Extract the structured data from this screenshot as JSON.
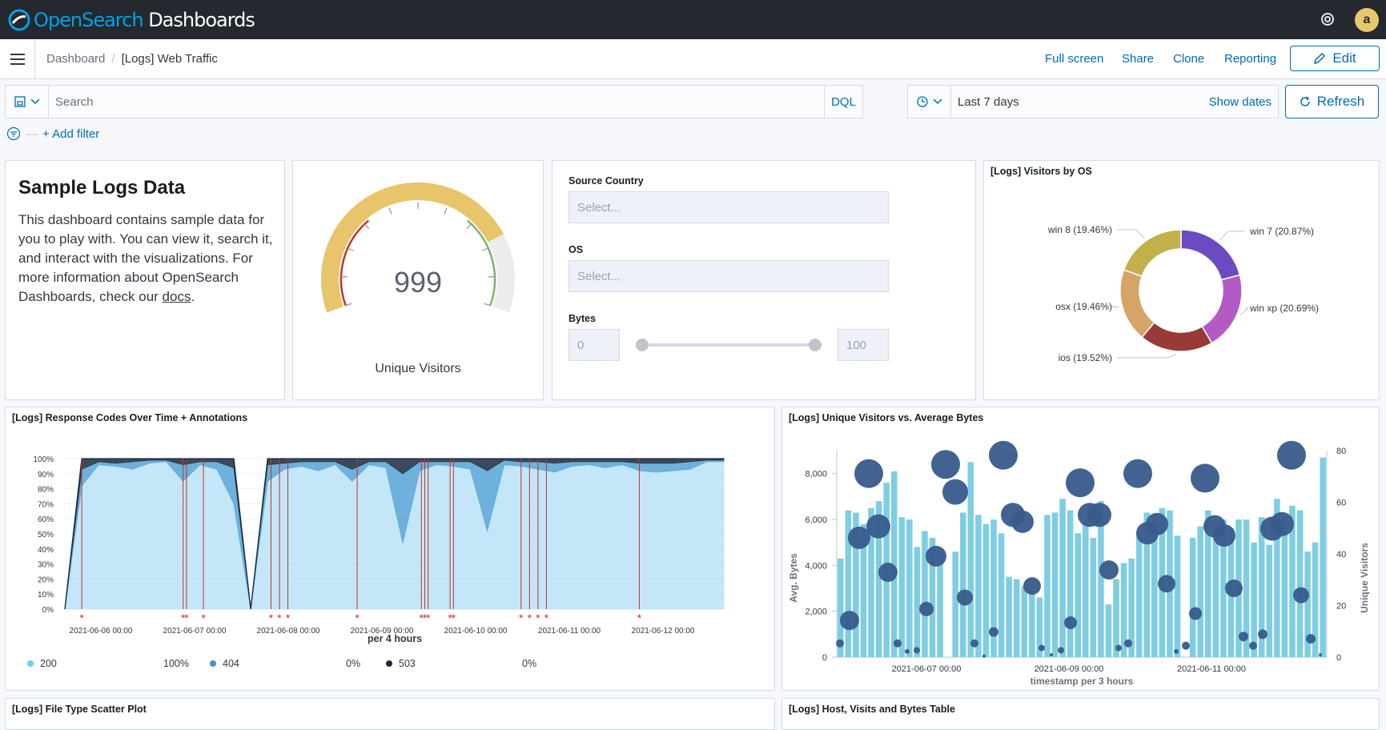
{
  "app": {
    "logo_brand": "OpenSearch",
    "logo_product": "Dashboards",
    "avatar_letter": "a"
  },
  "breadcrumb": {
    "root": "Dashboard",
    "current": "[Logs] Web Traffic"
  },
  "nav_actions": {
    "full_screen": "Full screen",
    "share": "Share",
    "clone": "Clone",
    "reporting": "Reporting",
    "edit": "Edit"
  },
  "query": {
    "placeholder": "Search",
    "language": "DQL",
    "time_range": "Last 7 days",
    "show_dates": "Show dates",
    "refresh": "Refresh"
  },
  "filters": {
    "add_filter": "+ Add filter"
  },
  "markdown_panel": {
    "title": "Sample Logs Data",
    "body_before_link": "This dashboard contains sample data for you to play with. You can view it, search it, and interact with the visualizations. For more information about OpenSearch Dashboards, check our ",
    "link": "docs",
    "body_after_link": "."
  },
  "gauge_panel": {
    "value": "999",
    "label": "Unique Visitors",
    "colors": {
      "low": "#c5322b",
      "mid": "#e8c46b",
      "high": "#7fb26b",
      "track": "#ececec"
    }
  },
  "controls_panel": {
    "source_country": {
      "label": "Source Country",
      "placeholder": "Select..."
    },
    "os": {
      "label": "OS",
      "placeholder": "Select..."
    },
    "bytes": {
      "label": "Bytes",
      "min": "0",
      "max": "100"
    }
  },
  "os_panel": {
    "title": "[Logs] Visitors by OS",
    "chart_data": {
      "type": "pie",
      "donut": true,
      "slices": [
        {
          "label": "win 7 (20.87%)",
          "value": 20.87,
          "color": "#6b4bc1"
        },
        {
          "label": "win xp (20.69%)",
          "value": 20.69,
          "color": "#b45ac4"
        },
        {
          "label": "ios (19.52%)",
          "value": 19.52,
          "color": "#983b36"
        },
        {
          "label": "osx (19.46%)",
          "value": 19.46,
          "color": "#d5a466"
        },
        {
          "label": "win 8 (19.46%)",
          "value": 19.46,
          "color": "#c2b14b"
        }
      ]
    }
  },
  "response_panel": {
    "title": "[Logs] Response Codes Over Time + Annotations",
    "xlabel": "per 4 hours",
    "chart_data": {
      "type": "area",
      "stacked_percent": true,
      "ylim": [
        0,
        100
      ],
      "y_ticks": [
        "0%",
        "10%",
        "20%",
        "30%",
        "40%",
        "50%",
        "60%",
        "70%",
        "80%",
        "90%",
        "100%"
      ],
      "x_ticks": [
        "2021-06-06 00:00",
        "2021-06-07 00:00",
        "2021-06-08 00:00",
        "2021-06-09 00:00",
        "2021-06-10 00:00",
        "2021-06-11 00:00",
        "2021-06-12 00:00"
      ],
      "series": [
        {
          "name": "200",
          "color": "#b9e3f7",
          "values": [
            0,
            82,
            96,
            95,
            93,
            97,
            98,
            85,
            96,
            93,
            70,
            0,
            85,
            93,
            95,
            92,
            96,
            85,
            96,
            94,
            44,
            92,
            96,
            95,
            93,
            52,
            96,
            95,
            93,
            91,
            95,
            96,
            94,
            96,
            92,
            91,
            92,
            93,
            98,
            98
          ]
        },
        {
          "name": "404",
          "color": "#54a4d6",
          "values": [
            0,
            11,
            2,
            2,
            5,
            2,
            1,
            11,
            2,
            5,
            24,
            0,
            11,
            4,
            3,
            6,
            2,
            8,
            2,
            4,
            46,
            6,
            2,
            3,
            5,
            40,
            3,
            3,
            5,
            6,
            3,
            2,
            4,
            2,
            5,
            6,
            5,
            5,
            1,
            1
          ]
        },
        {
          "name": "503",
          "color": "#1b2a3b",
          "values": [
            0,
            7,
            2,
            3,
            2,
            1,
            1,
            4,
            2,
            2,
            6,
            0,
            4,
            3,
            2,
            2,
            2,
            7,
            2,
            2,
            10,
            2,
            2,
            2,
            2,
            8,
            1,
            2,
            2,
            3,
            2,
            2,
            2,
            2,
            3,
            3,
            3,
            2,
            1,
            1
          ]
        }
      ],
      "legend": [
        {
          "name": "200",
          "value": "100%",
          "color": "#6dccf2"
        },
        {
          "name": "404",
          "value": "0%",
          "color": "#4a90c8"
        },
        {
          "name": "503",
          "value": "0%",
          "color": "#1b2a3b"
        }
      ],
      "annotation_positions": [
        1,
        7,
        7.2,
        8.2,
        12.2,
        12.7,
        13.2,
        17.3,
        21.1,
        21.3,
        21.5,
        22.8,
        23,
        27,
        27.5,
        28,
        28.5,
        34
      ]
    }
  },
  "visitors_panel": {
    "title": "[Logs] Unique Visitors vs. Average Bytes",
    "chart_data": {
      "type": "bar",
      "xlabel": "timestamp per 3 hours",
      "ylabel_left": "Avg. Bytes",
      "ylabel_right": "Unique Visitors",
      "ylim_left": [
        0,
        9000
      ],
      "ylim_right": [
        0,
        80
      ],
      "left_ticks": [
        "0",
        "2,000",
        "4,000",
        "6,000",
        "8,000"
      ],
      "right_ticks": [
        "0",
        "20",
        "40",
        "60",
        "80"
      ],
      "x_ticks": [
        "2021-06-07 00:00",
        "2021-06-09 00:00",
        "2021-06-11 00:00"
      ],
      "bar_color": "#7fcde2",
      "bubble_color": "#385b8c",
      "bars": [
        4300,
        6400,
        6300,
        5800,
        6500,
        6800,
        7600,
        8100,
        6100,
        6000,
        4800,
        5500,
        5200,
        4400,
        0,
        4600,
        6300,
        8500,
        6200,
        5800,
        6000,
        5400,
        3500,
        3400,
        3100,
        2900,
        2600,
        6200,
        6300,
        6900,
        6400,
        5400,
        6000,
        5200,
        6800,
        2300,
        3400,
        4100,
        4300,
        5300,
        6300,
        6200,
        6500,
        6400,
        5300,
        0,
        5200,
        5700,
        6400,
        5900,
        6000,
        5600,
        6000,
        6000,
        5000,
        6100,
        4900,
        6900,
        6100,
        6600,
        6400,
        4600,
        5000,
        8700
      ],
      "bubbles": [
        {
          "x": 0,
          "y": 600,
          "r": 5
        },
        {
          "x": 1,
          "y": 1600,
          "r": 12
        },
        {
          "x": 2,
          "y": 5200,
          "r": 14
        },
        {
          "x": 3,
          "y": 8000,
          "r": 18
        },
        {
          "x": 4,
          "y": 5700,
          "r": 15
        },
        {
          "x": 5,
          "y": 3700,
          "r": 12
        },
        {
          "x": 6,
          "y": 600,
          "r": 5
        },
        {
          "x": 7,
          "y": 250,
          "r": 3
        },
        {
          "x": 8,
          "y": 300,
          "r": 4
        },
        {
          "x": 9,
          "y": 2100,
          "r": 9
        },
        {
          "x": 10,
          "y": 4400,
          "r": 13
        },
        {
          "x": 11,
          "y": 8400,
          "r": 18
        },
        {
          "x": 12,
          "y": 7200,
          "r": 16
        },
        {
          "x": 13,
          "y": 2600,
          "r": 10
        },
        {
          "x": 14,
          "y": 600,
          "r": 5
        },
        {
          "x": 15,
          "y": 50,
          "r": 2
        },
        {
          "x": 16,
          "y": 1100,
          "r": 6
        },
        {
          "x": 17,
          "y": 8800,
          "r": 18
        },
        {
          "x": 18,
          "y": 6200,
          "r": 15
        },
        {
          "x": 19,
          "y": 5900,
          "r": 14
        },
        {
          "x": 20,
          "y": 3100,
          "r": 11
        },
        {
          "x": 21,
          "y": 400,
          "r": 4
        },
        {
          "x": 22,
          "y": 100,
          "r": 2
        },
        {
          "x": 23,
          "y": 300,
          "r": 4
        },
        {
          "x": 24,
          "y": 1500,
          "r": 8
        },
        {
          "x": 25,
          "y": 7600,
          "r": 18
        },
        {
          "x": 26,
          "y": 6200,
          "r": 15
        },
        {
          "x": 27,
          "y": 6200,
          "r": 15
        },
        {
          "x": 28,
          "y": 3800,
          "r": 12
        },
        {
          "x": 29,
          "y": 400,
          "r": 4
        },
        {
          "x": 30,
          "y": 600,
          "r": 5
        },
        {
          "x": 31,
          "y": 8000,
          "r": 18
        },
        {
          "x": 32,
          "y": 5400,
          "r": 14
        },
        {
          "x": 33,
          "y": 5800,
          "r": 14
        },
        {
          "x": 34,
          "y": 3200,
          "r": 11
        },
        {
          "x": 35,
          "y": 250,
          "r": 3
        },
        {
          "x": 36,
          "y": 500,
          "r": 5
        },
        {
          "x": 37,
          "y": 1900,
          "r": 8
        },
        {
          "x": 38,
          "y": 7800,
          "r": 18
        },
        {
          "x": 39,
          "y": 5700,
          "r": 14
        },
        {
          "x": 40,
          "y": 5300,
          "r": 14
        },
        {
          "x": 41,
          "y": 3000,
          "r": 11
        },
        {
          "x": 42,
          "y": 900,
          "r": 6
        },
        {
          "x": 43,
          "y": 500,
          "r": 5
        },
        {
          "x": 44,
          "y": 1000,
          "r": 6
        },
        {
          "x": 45,
          "y": 5600,
          "r": 15
        },
        {
          "x": 46,
          "y": 5800,
          "r": 15
        },
        {
          "x": 47,
          "y": 8800,
          "r": 18
        },
        {
          "x": 48,
          "y": 2700,
          "r": 10
        },
        {
          "x": 49,
          "y": 800,
          "r": 6
        },
        {
          "x": 50,
          "y": 100,
          "r": 2
        }
      ]
    }
  },
  "bottom_panels": {
    "scatter_title": "[Logs] File Type Scatter Plot",
    "table_title": "[Logs] Host, Visits and Bytes Table"
  }
}
